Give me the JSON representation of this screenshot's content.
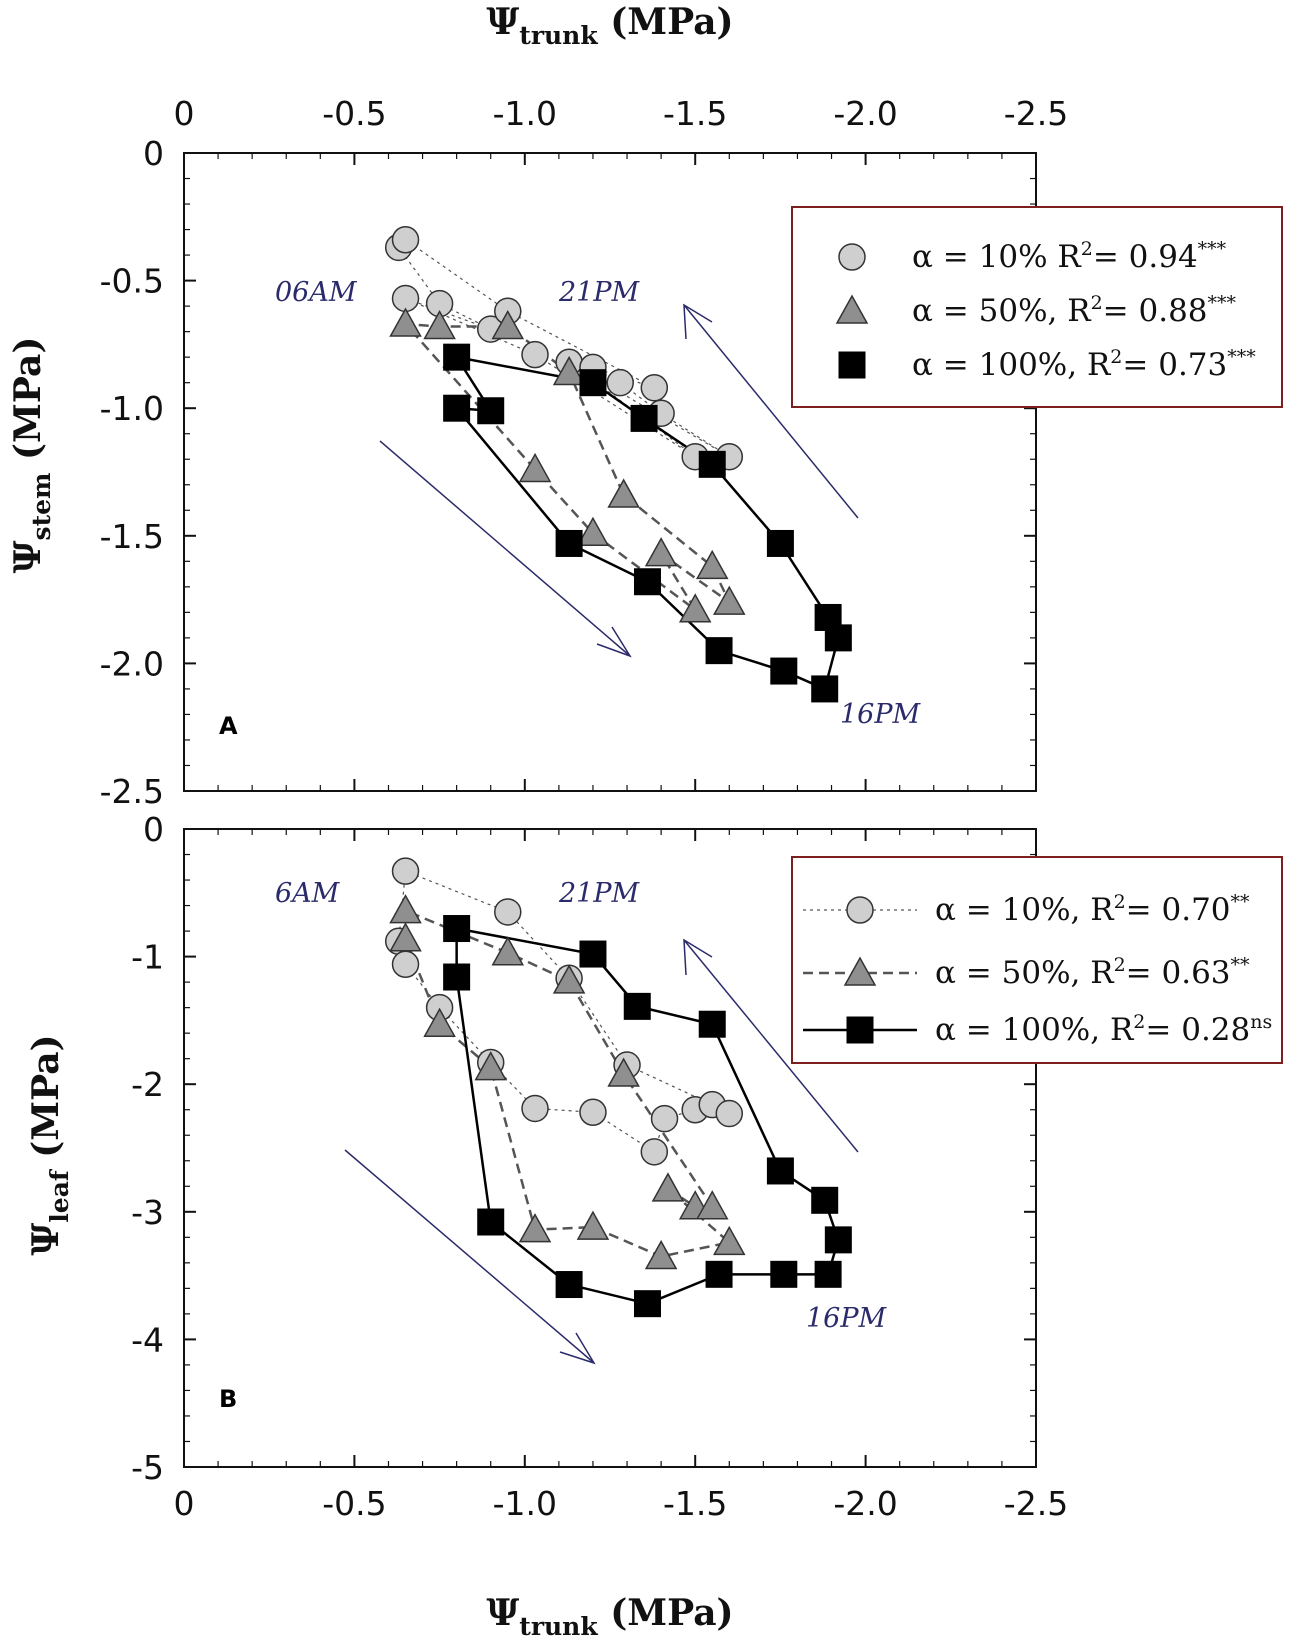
{
  "chart_data": [
    {
      "type": "scatter",
      "panel": "A",
      "title": "Ψtrunk (MPa)",
      "xlabel": "Ψtrunk (MPa)",
      "ylabel": "Ψstem (MPa)",
      "xlim": [
        0,
        -2.5
      ],
      "ylim": [
        0,
        -2.5
      ],
      "xticks": [
        "0",
        "-0.5",
        "-1.0",
        "-1.5",
        "-2.0",
        "-2.5"
      ],
      "yticks": [
        "0",
        "-0.5",
        "-1.0",
        "-1.5",
        "-2.0",
        "-2.5"
      ],
      "annotations": [
        "06AM",
        "21PM",
        "16PM"
      ],
      "series": [
        {
          "name": "α = 10% R²= 0.94***",
          "marker": "circle",
          "x": [
            -0.63,
            -0.65,
            -0.65,
            -0.75,
            -0.9,
            -0.95,
            -1.03,
            -1.13,
            -1.2,
            -1.28,
            -1.38,
            -1.4,
            -1.5,
            -1.6
          ],
          "y": [
            -0.37,
            -0.34,
            -0.57,
            -0.59,
            -0.69,
            -0.62,
            -0.79,
            -0.82,
            -0.84,
            -0.9,
            -0.92,
            -1.02,
            -1.19,
            -1.19
          ]
        },
        {
          "name": "α = 50%, R²= 0.88***",
          "marker": "triangle",
          "x": [
            -0.65,
            -0.75,
            -0.95,
            -1.03,
            -1.13,
            -1.2,
            -1.29,
            -1.4,
            -1.5,
            -1.55,
            -1.6
          ],
          "y": [
            -0.67,
            -0.68,
            -0.68,
            -1.24,
            -0.86,
            -1.49,
            -1.34,
            -1.57,
            -1.79,
            -1.62,
            -1.76
          ]
        },
        {
          "name": "α = 100%, R²= 0.73***",
          "marker": "square",
          "x": [
            -0.8,
            -0.8,
            -0.9,
            -1.13,
            -1.2,
            -1.35,
            -1.36,
            -1.55,
            -1.57,
            -1.75,
            -1.76,
            -1.88,
            -1.89,
            -1.92
          ],
          "y": [
            -0.8,
            -1.0,
            -1.01,
            -1.53,
            -0.9,
            -1.04,
            -1.68,
            -1.22,
            -1.95,
            -1.53,
            -2.03,
            -2.1,
            -1.82,
            -1.9
          ]
        }
      ]
    },
    {
      "type": "scatter",
      "panel": "B",
      "xlabel": "Ψtrunk (MPa)",
      "ylabel": "Ψleaf (MPa)",
      "xlim": [
        0,
        -2.5
      ],
      "ylim": [
        0,
        -5
      ],
      "xticks": [
        "0",
        "-0.5",
        "-1.0",
        "-1.5",
        "-2.0",
        "-2.5"
      ],
      "yticks": [
        "0",
        "-1",
        "-2",
        "-3",
        "-4",
        "-5"
      ],
      "annotations": [
        "6AM",
        "21PM",
        "16PM"
      ],
      "series": [
        {
          "name": "α = 10%, R²= 0.70**",
          "marker": "circle",
          "x": [
            -0.65,
            -0.63,
            -0.65,
            -0.75,
            -0.9,
            -0.95,
            -1.03,
            -1.13,
            -1.2,
            -1.3,
            -1.38,
            -1.41,
            -1.5,
            -1.55,
            -1.6
          ],
          "y": [
            -0.33,
            -0.88,
            -1.06,
            -1.4,
            -1.83,
            -0.65,
            -2.19,
            -1.17,
            -2.22,
            -1.85,
            -2.53,
            -2.27,
            -2.2,
            -2.16,
            -2.23
          ]
        },
        {
          "name": "α = 50%, R²= 0.63**",
          "marker": "triangle",
          "x": [
            -0.65,
            -0.65,
            -0.75,
            -0.9,
            -0.95,
            -1.03,
            -1.13,
            -1.2,
            -1.29,
            -1.4,
            -1.42,
            -1.5,
            -1.55,
            -1.6
          ],
          "y": [
            -0.64,
            -0.86,
            -1.53,
            -1.87,
            -0.97,
            -3.14,
            -1.19,
            -3.12,
            -1.92,
            -3.35,
            -2.82,
            -2.96,
            -2.96,
            -3.24
          ]
        },
        {
          "name": "α = 100%, R²= 0.28ns",
          "marker": "square",
          "x": [
            -0.8,
            -0.8,
            -0.9,
            -1.13,
            -1.2,
            -1.33,
            -1.36,
            -1.55,
            -1.57,
            -1.75,
            -1.76,
            -1.88,
            -1.89,
            -1.92
          ],
          "y": [
            -0.78,
            -1.16,
            -3.08,
            -3.57,
            -0.98,
            -1.39,
            -3.72,
            -1.53,
            -3.49,
            -2.68,
            -3.49,
            -2.91,
            -3.49,
            -3.22
          ]
        }
      ]
    }
  ]
}
